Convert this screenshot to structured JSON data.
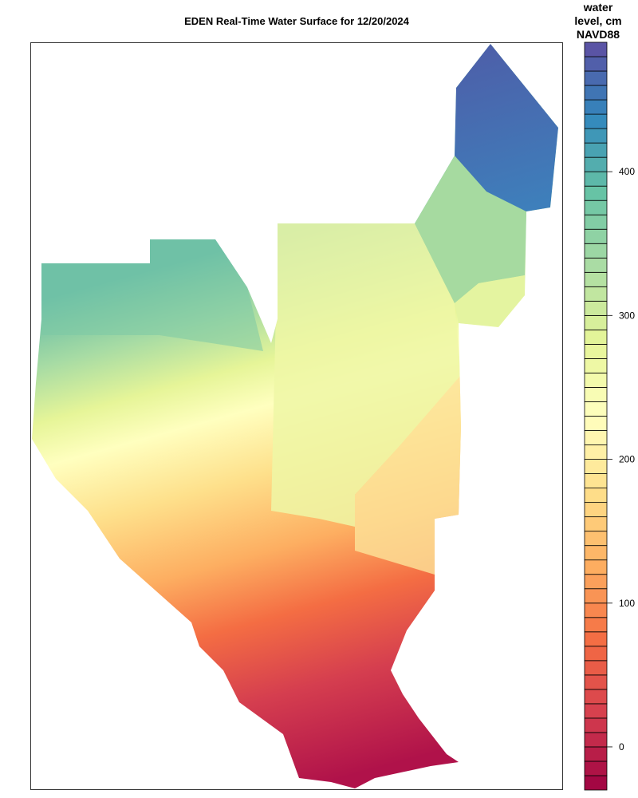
{
  "title": "EDEN Real-Time Water Surface for 12/20/2024",
  "legend": {
    "title_lines": [
      "water",
      "level, cm",
      "NAVD88"
    ],
    "ticks": [
      0,
      100,
      200,
      300,
      400
    ],
    "range": [
      -30,
      490
    ],
    "band_step": 10,
    "palette": [
      "#9e0142",
      "#d53e4f",
      "#f46d43",
      "#fdae61",
      "#fee08b",
      "#ffffbf",
      "#e6f598",
      "#abdda4",
      "#66c2a5",
      "#3288bd",
      "#5e4fa2"
    ]
  }
}
